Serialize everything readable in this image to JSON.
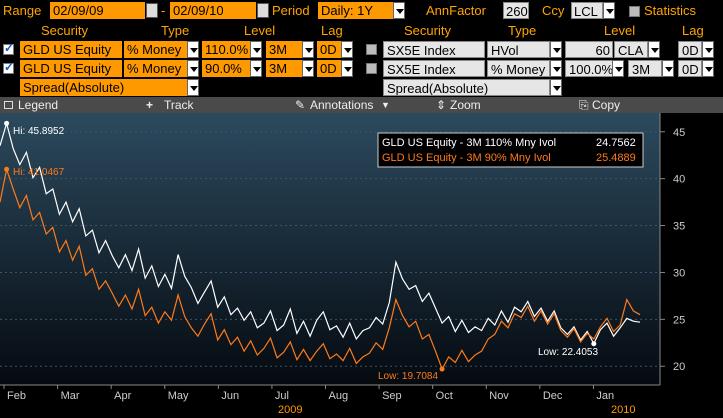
{
  "topbar": {
    "range_label": "Range",
    "start_date": "02/09/09",
    "end_date": "02/09/10",
    "dash": "-",
    "period_label": "Period",
    "period_value": "Daily: 1Y",
    "annfactor_label": "AnnFactor",
    "annfactor_value": "260",
    "ccy_label": "Ccy",
    "ccy_value": "LCL",
    "statistics_label": "Statistics"
  },
  "headers": {
    "security": "Security",
    "type": "Type",
    "level": "Level",
    "lag": "Lag"
  },
  "left_rows": [
    {
      "security": "GLD US Equity",
      "type": "% Money",
      "level": "110.0%",
      "tenor": "3M",
      "lag": "0D",
      "checked": true
    },
    {
      "security": "GLD US Equity",
      "type": "% Money",
      "level": "90.0%",
      "tenor": "3M",
      "lag": "0D",
      "checked": true
    },
    {
      "security": "Spread(Absolute)"
    }
  ],
  "right_rows": [
    {
      "security": "SX5E Index",
      "type": "HVol",
      "level": "60",
      "tenor": "CLA",
      "lag": "0D",
      "checked": false
    },
    {
      "security": "SX5E Index",
      "type": "% Money",
      "level": "100.0%",
      "tenor": "3M",
      "lag": "0D",
      "checked": false
    },
    {
      "security": "Spread(Absolute)"
    }
  ],
  "toolbar": {
    "legend": "Legend",
    "track": "Track",
    "annotations": "Annotations",
    "zoom": "Zoom",
    "copy": "Copy"
  },
  "legend": {
    "series1": "GLD US Equity - 3M 110% Mny Ivol",
    "series1_value": "24.7562",
    "series2": "GLD US Equity - 3M 90% Mny Ivol",
    "series2_value": "25.4889"
  },
  "annotations": {
    "hi_white": "Hi: 45.8952",
    "hi_orange": "Hi: 41.0467",
    "low_orange": "Low: 19.7084",
    "low_white": "Low: 22.4053"
  },
  "colors": {
    "series1": "#ffffff",
    "series2": "#ff7a1a",
    "accent": "#ff9900"
  },
  "chart_data": {
    "type": "line",
    "ylim": [
      18,
      47
    ],
    "y_ticks": [
      20,
      25,
      30,
      35,
      40,
      45
    ],
    "x_tick_labels": [
      "Feb",
      "Mar",
      "Apr",
      "May",
      "Jun",
      "Jul",
      "Aug",
      "Sep",
      "Oct",
      "Nov",
      "Dec",
      "Jan"
    ],
    "year_labels": [
      "2009",
      "2010"
    ],
    "series": [
      {
        "name": "GLD US Equity - 3M 110% Mny Ivol",
        "values": [
          43.5,
          45.9,
          43.2,
          41.5,
          42.8,
          40.1,
          41.2,
          38.4,
          38.9,
          36.2,
          37.5,
          35.4,
          36.8,
          33.9,
          34.5,
          32.1,
          33.4,
          31.8,
          30.5,
          31.9,
          30.2,
          32.5,
          29.4,
          30.7,
          28.5,
          29.8,
          28.3,
          31.9,
          29.6,
          28.4,
          26.7,
          27.9,
          29.1,
          26.3,
          27.4,
          25.5,
          26.2,
          24.9,
          25.8,
          24.1,
          24.6,
          25.9,
          23.8,
          24.4,
          26.1,
          23.5,
          24.8,
          23.2,
          24.9,
          25.8,
          23.9,
          24.3,
          23.1,
          24.6,
          22.9,
          23.8,
          24.1,
          25.2,
          24.5,
          26.8,
          31.1,
          29.3,
          28.2,
          28.6,
          26.9,
          27.8,
          26.2,
          24.6,
          25.3,
          23.7,
          24.9,
          23.6,
          24.2,
          23.8,
          25.1,
          24.4,
          25.9,
          24.7,
          26.3,
          25.8,
          26.9,
          25.3,
          26.2,
          24.8,
          25.9,
          24.1,
          23.4,
          24.2,
          22.8,
          23.7,
          22.4,
          23.9,
          24.6,
          23.2,
          24.1,
          25.1,
          24.8,
          24.7
        ]
      },
      {
        "name": "GLD US Equity - 3M 90% Mny Ivol",
        "values": [
          37.5,
          41.0,
          38.9,
          36.9,
          38.2,
          35.6,
          36.4,
          34.1,
          34.8,
          32.2,
          33.4,
          31.3,
          32.8,
          29.7,
          30.4,
          28.2,
          29.1,
          27.8,
          26.4,
          27.6,
          26.1,
          28.2,
          25.4,
          26.3,
          24.6,
          25.8,
          24.9,
          27.6,
          25.3,
          24.1,
          23.2,
          24.5,
          25.6,
          22.8,
          23.9,
          22.3,
          23.1,
          21.6,
          22.7,
          21.2,
          21.9,
          23.0,
          20.9,
          21.5,
          22.6,
          20.7,
          21.8,
          20.6,
          21.6,
          22.4,
          20.8,
          21.3,
          20.6,
          21.9,
          20.3,
          21.0,
          21.4,
          22.5,
          21.8,
          24.1,
          27.1,
          25.4,
          24.2,
          24.8,
          22.9,
          23.4,
          21.6,
          19.7,
          21.0,
          20.4,
          21.7,
          20.5,
          21.2,
          21.6,
          22.9,
          23.4,
          24.8,
          24.1,
          25.6,
          25.2,
          26.4,
          24.8,
          25.9,
          24.5,
          25.6,
          23.8,
          23.1,
          24.0,
          22.6,
          23.5,
          22.9,
          24.2,
          25.1,
          23.7,
          24.4,
          27.1,
          25.9,
          25.5
        ]
      }
    ]
  }
}
